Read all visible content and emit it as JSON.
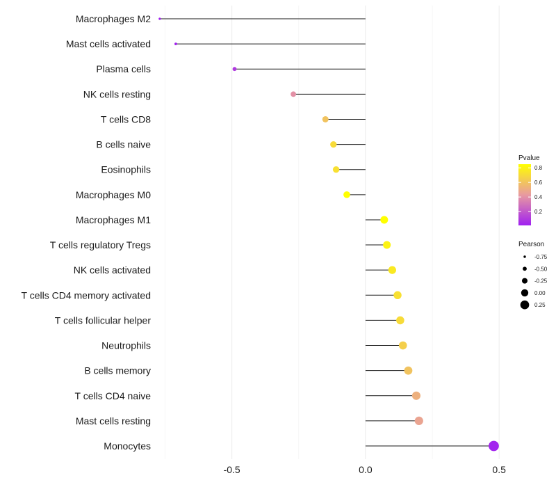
{
  "chart_data": {
    "type": "lollipop",
    "title": "",
    "xlabel": "",
    "ylabel": "",
    "xlim": [
      -0.78,
      0.51
    ],
    "xticks": [
      -0.5,
      0.0,
      0.5
    ],
    "xtick_labels": [
      "-0.5",
      "0.0",
      "0.5"
    ],
    "grid": true,
    "categories": [
      "Macrophages M2",
      "Mast cells activated",
      "Plasma cells",
      "NK cells resting",
      "T cells CD8",
      "B cells naive",
      "Eosinophils",
      "Macrophages M0",
      "Macrophages M1",
      "T cells regulatory  Tregs ",
      "NK cells activated",
      "T cells CD4 memory activated",
      "T cells follicular helper",
      "Neutrophils",
      "B cells memory",
      "T cells CD4 naive",
      "Mast cells resting",
      "Monocytes"
    ],
    "pearson": [
      -0.77,
      -0.71,
      -0.49,
      -0.27,
      -0.15,
      -0.12,
      -0.11,
      -0.07,
      0.07,
      0.08,
      0.1,
      0.12,
      0.13,
      0.14,
      0.16,
      0.19,
      0.2,
      0.48
    ],
    "pvalue": [
      0.01,
      0.02,
      0.1,
      0.4,
      0.6,
      0.7,
      0.72,
      0.85,
      0.85,
      0.8,
      0.76,
      0.72,
      0.7,
      0.65,
      0.6,
      0.52,
      0.47,
      0.02
    ],
    "color_legend": {
      "title": "Pvalue",
      "ticks": [
        0.8,
        0.6,
        0.4,
        0.2
      ],
      "tick_labels": [
        "0.8",
        "0.6",
        "0.4",
        "0.2"
      ],
      "range": [
        0.01,
        0.85
      ],
      "low_color": "#a020f0",
      "mid_color": "#e89aa0",
      "high_color": "#ffff00"
    },
    "size_legend": {
      "title": "Pearson",
      "values": [
        -0.75,
        -0.5,
        -0.25,
        0.0,
        0.25
      ],
      "labels": [
        "-0.75",
        "-0.50",
        "-0.25",
        "0.00",
        "0.25"
      ]
    }
  }
}
